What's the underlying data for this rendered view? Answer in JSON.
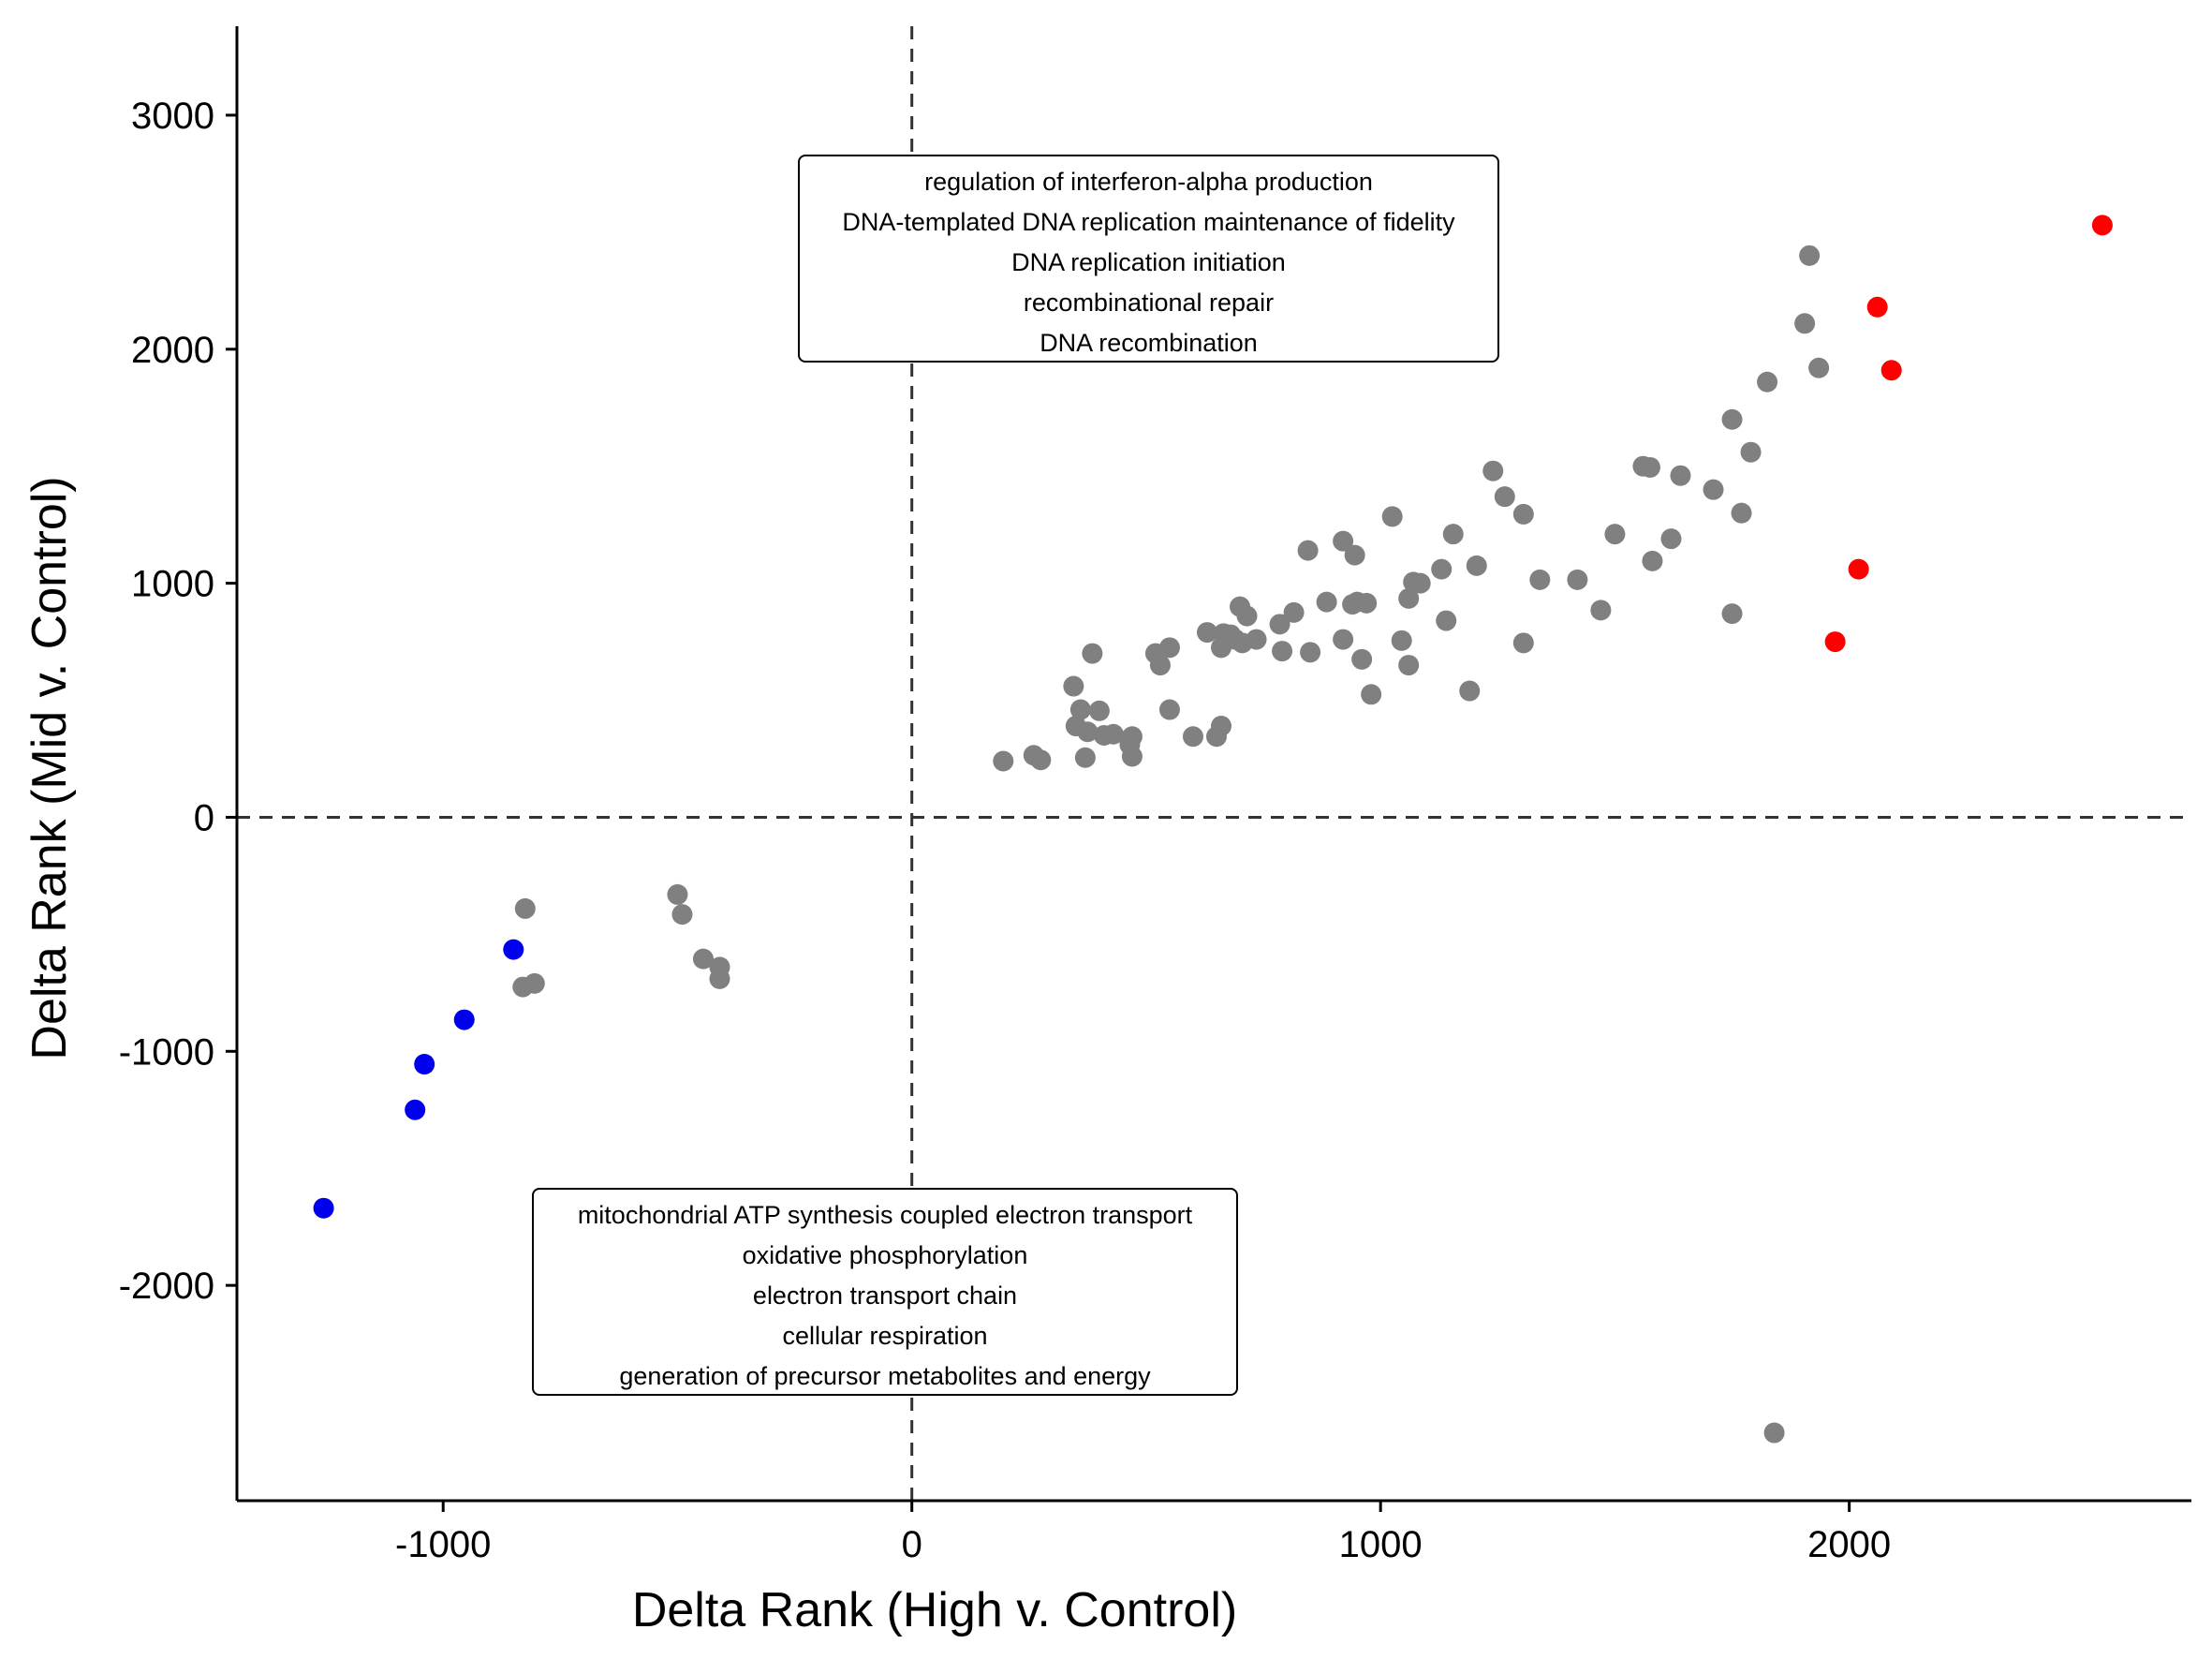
{
  "chart_data": {
    "type": "scatter",
    "xlabel": "Delta Rank (High v. Control)",
    "ylabel": "Delta Rank (Mid v. Control)",
    "xlim": [
      -1440,
      2730
    ],
    "ylim": [
      -2920,
      3380
    ],
    "x_ticks": [
      -1000,
      0,
      1000,
      2000
    ],
    "y_ticks": [
      -2000,
      -1000,
      0,
      1000,
      2000,
      3000
    ],
    "x_tick_labels": [
      "-1000",
      "0",
      "1000",
      "2000"
    ],
    "y_tick_labels": [
      "-2000",
      "-1000",
      "0",
      "1000",
      "2000",
      "3000"
    ],
    "reference_lines": {
      "x": 0,
      "y": 0,
      "style": "dashed"
    },
    "colors": {
      "up": "#ff0000",
      "down": "#0000ee",
      "other": "#808080"
    },
    "series": [
      {
        "group": "up",
        "points": [
          [
            2540,
            2530
          ],
          [
            2060,
            2180
          ],
          [
            2090,
            1910
          ],
          [
            2020,
            1060
          ],
          [
            1970,
            750
          ]
        ]
      },
      {
        "group": "down",
        "points": [
          [
            -1255,
            -1670
          ],
          [
            -1060,
            -1250
          ],
          [
            -1040,
            -1055
          ],
          [
            -955,
            -865
          ],
          [
            -850,
            -565
          ]
        ]
      },
      {
        "group": "other",
        "points": [
          [
            1915,
            2400
          ],
          [
            1905,
            2110
          ],
          [
            1935,
            1920
          ],
          [
            1825,
            1860
          ],
          [
            1750,
            1700
          ],
          [
            1790,
            1560
          ],
          [
            1770,
            1300
          ],
          [
            1750,
            870
          ],
          [
            1560,
            1500
          ],
          [
            1575,
            1495
          ],
          [
            1640,
            1460
          ],
          [
            1710,
            1400
          ],
          [
            1620,
            1190
          ],
          [
            1580,
            1095
          ],
          [
            1500,
            1210
          ],
          [
            1470,
            885
          ],
          [
            1420,
            1015
          ],
          [
            1340,
            1015
          ],
          [
            1305,
            1295
          ],
          [
            1265,
            1370
          ],
          [
            1240,
            1480
          ],
          [
            1305,
            745
          ],
          [
            1205,
            1075
          ],
          [
            1190,
            540
          ],
          [
            1155,
            1210
          ],
          [
            1130,
            1060
          ],
          [
            1140,
            840
          ],
          [
            1085,
            1000
          ],
          [
            1070,
            1005
          ],
          [
            1060,
            935
          ],
          [
            1045,
            755
          ],
          [
            1060,
            650
          ],
          [
            1025,
            1285
          ],
          [
            980,
            525
          ],
          [
            960,
            675
          ],
          [
            970,
            915
          ],
          [
            950,
            920
          ],
          [
            940,
            910
          ],
          [
            945,
            1120
          ],
          [
            920,
            1180
          ],
          [
            920,
            760
          ],
          [
            885,
            920
          ],
          [
            850,
            705
          ],
          [
            845,
            1140
          ],
          [
            815,
            875
          ],
          [
            790,
            710
          ],
          [
            785,
            825
          ],
          [
            735,
            760
          ],
          [
            715,
            860
          ],
          [
            700,
            900
          ],
          [
            705,
            745
          ],
          [
            690,
            760
          ],
          [
            680,
            780
          ],
          [
            665,
            785
          ],
          [
            660,
            725
          ],
          [
            630,
            790
          ],
          [
            660,
            390
          ],
          [
            650,
            345
          ],
          [
            600,
            345
          ],
          [
            550,
            725
          ],
          [
            530,
            650
          ],
          [
            520,
            700
          ],
          [
            550,
            460
          ],
          [
            385,
            700
          ],
          [
            345,
            560
          ],
          [
            360,
            460
          ],
          [
            400,
            455
          ],
          [
            350,
            390
          ],
          [
            375,
            365
          ],
          [
            410,
            350
          ],
          [
            430,
            355
          ],
          [
            470,
            345
          ],
          [
            465,
            310
          ],
          [
            470,
            260
          ],
          [
            370,
            255
          ],
          [
            275,
            245
          ],
          [
            260,
            265
          ],
          [
            195,
            240
          ],
          [
            -825,
            -390
          ],
          [
            -830,
            -725
          ],
          [
            -805,
            -710
          ],
          [
            -500,
            -330
          ],
          [
            -490,
            -415
          ],
          [
            -445,
            -605
          ],
          [
            -410,
            -640
          ],
          [
            -410,
            -690
          ],
          [
            1840,
            -2630
          ]
        ]
      }
    ],
    "annotations": [
      {
        "anchor": "top",
        "lines": [
          "regulation of interferon-alpha production",
          "DNA-templated DNA replication maintenance of fidelity",
          "DNA replication initiation",
          "recombinational repair",
          "DNA recombination"
        ]
      },
      {
        "anchor": "bottom",
        "lines": [
          "mitochondrial ATP synthesis coupled electron transport",
          "oxidative phosphorylation",
          "electron transport chain",
          "cellular respiration",
          "generation of precursor metabolites and energy"
        ]
      }
    ]
  }
}
